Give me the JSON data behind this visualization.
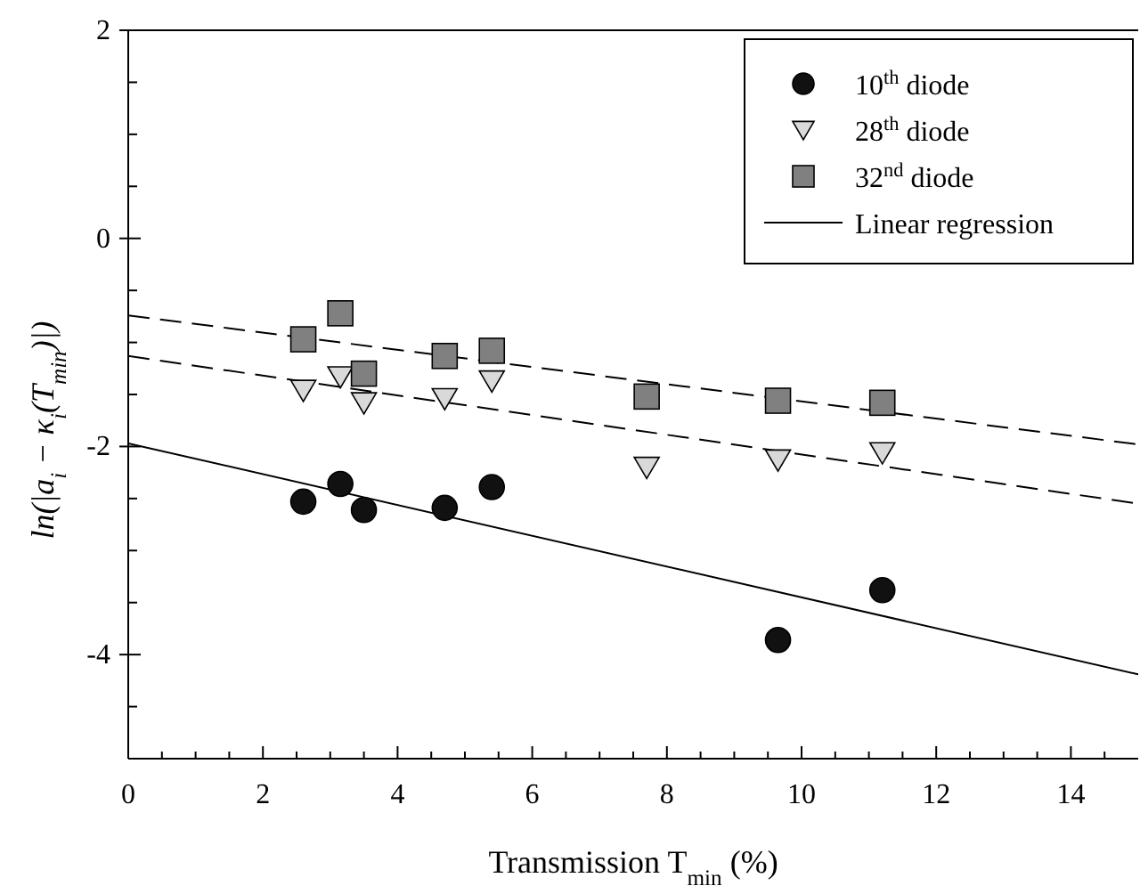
{
  "chart_data": {
    "type": "scatter",
    "xlabel": "Transmission T$_{min}$ (%)",
    "ylabel": "ln(|a$_{i}$ − κ$_{i}$(T$_{min}$)|)",
    "xlim": [
      0,
      15
    ],
    "ylim": [
      -5,
      2
    ],
    "xticks": [
      0,
      {
        "value": 0.5,
        "label": null
      },
      {
        "value": 1,
        "label": null
      },
      {
        "value": 1.5,
        "label": null
      },
      2,
      {
        "value": 2.5,
        "label": null
      },
      {
        "value": 3,
        "label": null
      },
      {
        "value": 3.5,
        "label": null
      },
      4,
      {
        "value": 4.5,
        "label": null
      },
      {
        "value": 5,
        "label": null
      },
      {
        "value": 5.5,
        "label": null
      },
      6,
      {
        "value": 6.5,
        "label": null
      },
      {
        "value": 7,
        "label": null
      },
      {
        "value": 7.5,
        "label": null
      },
      8,
      {
        "value": 8.5,
        "label": null
      },
      {
        "value": 9,
        "label": null
      },
      {
        "value": 9.5,
        "label": null
      },
      10,
      {
        "value": 10.5,
        "label": null
      },
      {
        "value": 11,
        "label": null
      },
      {
        "value": 11.5,
        "label": null
      },
      12,
      {
        "value": 12.5,
        "label": null
      },
      {
        "value": 13,
        "label": null
      },
      {
        "value": 13.5,
        "label": null
      },
      14,
      {
        "value": 14.5,
        "label": null
      }
    ],
    "yticks": [
      -4,
      {
        "value": -4.5,
        "label": null
      },
      {
        "value": -3.5,
        "label": null
      },
      {
        "value": -3,
        "label": null
      },
      {
        "value": -2.5,
        "label": null
      },
      -2,
      {
        "value": -1.5,
        "label": null
      },
      {
        "value": -1,
        "label": null
      },
      {
        "value": -0.5,
        "label": null
      },
      0,
      {
        "value": 0.5,
        "label": null
      },
      {
        "value": 1,
        "label": null
      },
      {
        "value": 1.5,
        "label": null
      },
      2
    ],
    "grid": false,
    "legend": "top right",
    "series": [
      {
        "name": "10$^{th}$ diode",
        "marker": "circle",
        "color": "#111111",
        "x": [
          2.6,
          3.15,
          3.5,
          4.7,
          5.4,
          9.65,
          11.2
        ],
        "values": [
          -2.53,
          -2.36,
          -2.61,
          -2.59,
          -2.39,
          -3.86,
          -3.38
        ]
      },
      {
        "name": "28$^{th}$ diode",
        "marker": "triangle",
        "color": "#d9d9d9",
        "x": [
          2.6,
          3.15,
          3.5,
          4.7,
          5.4,
          7.7,
          9.65,
          11.2
        ],
        "values": [
          -1.46,
          -1.33,
          -1.58,
          -1.54,
          -1.37,
          -2.2,
          -2.13,
          -2.06
        ]
      },
      {
        "name": "32$^{nd}$ diode",
        "marker": "square",
        "color": "#808080",
        "x": [
          2.6,
          3.15,
          3.5,
          4.7,
          5.4,
          7.7,
          9.65,
          11.2
        ],
        "values": [
          -0.97,
          -0.72,
          -1.3,
          -1.13,
          -1.08,
          -1.52,
          -1.56,
          -1.58
        ]
      },
      {
        "name": "Linear regression",
        "type": "line",
        "line_style": "solid",
        "color": "#000000",
        "x": [
          0,
          15
        ],
        "values": [
          -1.97,
          -4.19
        ]
      },
      {
        "type": "line",
        "line_style": "dashed",
        "color": "#000000",
        "x": [
          0,
          15
        ],
        "values": [
          -0.74,
          -1.98
        ]
      },
      {
        "type": "line",
        "line_style": "dashed",
        "color": "#000000",
        "x": [
          0,
          15
        ],
        "values": [
          -1.13,
          -2.55
        ]
      }
    ]
  }
}
